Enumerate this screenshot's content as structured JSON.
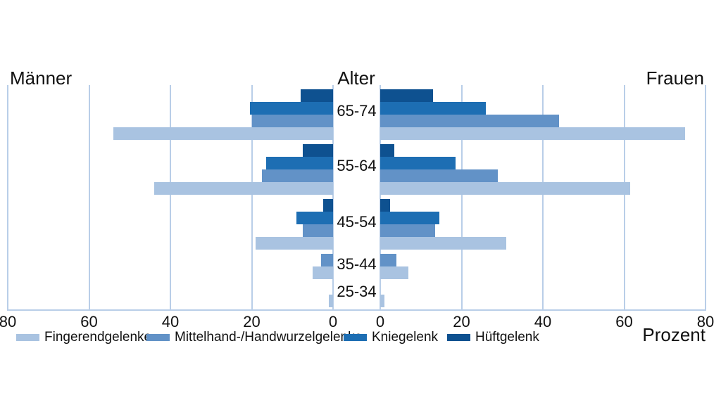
{
  "chart_data": {
    "type": "bar",
    "variant": "population-pyramid",
    "title_left": "Männer",
    "title_right": "Frauen",
    "center_axis_title": "Alter",
    "unit_label": "Prozent",
    "xlabel": "Prozent",
    "xlim": [
      0,
      80
    ],
    "ticks_left": [
      80,
      60,
      40,
      20,
      0
    ],
    "ticks_right": [
      0,
      20,
      40,
      60,
      80
    ],
    "grid": true,
    "legend_position": "bottom",
    "categories": [
      "65-74",
      "55-64",
      "45-54",
      "35-44",
      "25-34"
    ],
    "series": [
      {
        "name": "Fingerendgelenke",
        "color": "#a9c3e1",
        "maenner": [
          54,
          44,
          19,
          5,
          1
        ],
        "frauen": [
          75,
          61.5,
          31,
          7,
          1
        ]
      },
      {
        "name": "Mittelhand-/Handwurzelgelenke",
        "color": "#6292c7",
        "maenner": [
          20,
          17.5,
          7.5,
          3,
          0
        ],
        "frauen": [
          44,
          29,
          13.5,
          4,
          0
        ]
      },
      {
        "name": "Kniegelenk",
        "color": "#1d6eb3",
        "maenner": [
          20.5,
          16.5,
          9,
          0,
          0
        ],
        "frauen": [
          26,
          18.5,
          14.5,
          0,
          0
        ]
      },
      {
        "name": "Hüftgelenk",
        "color": "#0e5190",
        "maenner": [
          8,
          7.5,
          2.5,
          0,
          0
        ],
        "frauen": [
          13,
          3.5,
          2.5,
          0,
          0
        ]
      }
    ]
  },
  "colors": {
    "grid": "#b9cee8",
    "axis_line": "#b9cee8",
    "text": "#1a1a1a",
    "background": "#ffffff"
  }
}
